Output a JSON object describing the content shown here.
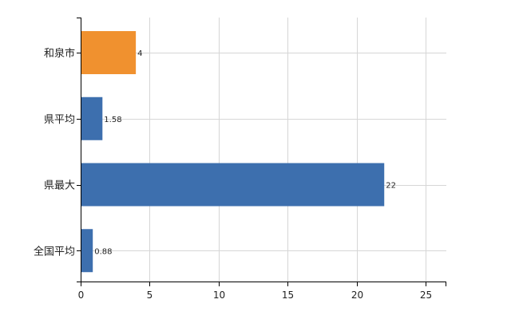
{
  "chart_data": {
    "type": "bar",
    "orientation": "horizontal",
    "categories": [
      "和泉市",
      "県平均",
      "県最大",
      "全国平均"
    ],
    "values": [
      4,
      1.58,
      22,
      0.88
    ],
    "value_labels": [
      "4",
      "1.58",
      "22",
      "0.88"
    ],
    "bar_colors": [
      "#f0912f",
      "#3d6fae",
      "#3d6fae",
      "#3d6fae"
    ],
    "xlim": [
      0,
      26.5
    ],
    "x_ticks": [
      0,
      5,
      10,
      15,
      20,
      25
    ],
    "x_tick_labels": [
      "0",
      "5",
      "10",
      "15",
      "20",
      "25"
    ],
    "grid": true,
    "legend": "none",
    "title": "",
    "xlabel": "",
    "ylabel": ""
  },
  "colors": {
    "highlight": "#f0912f",
    "bar": "#3d6fae",
    "grid": "#d6d6d6",
    "axis": "#000000"
  }
}
